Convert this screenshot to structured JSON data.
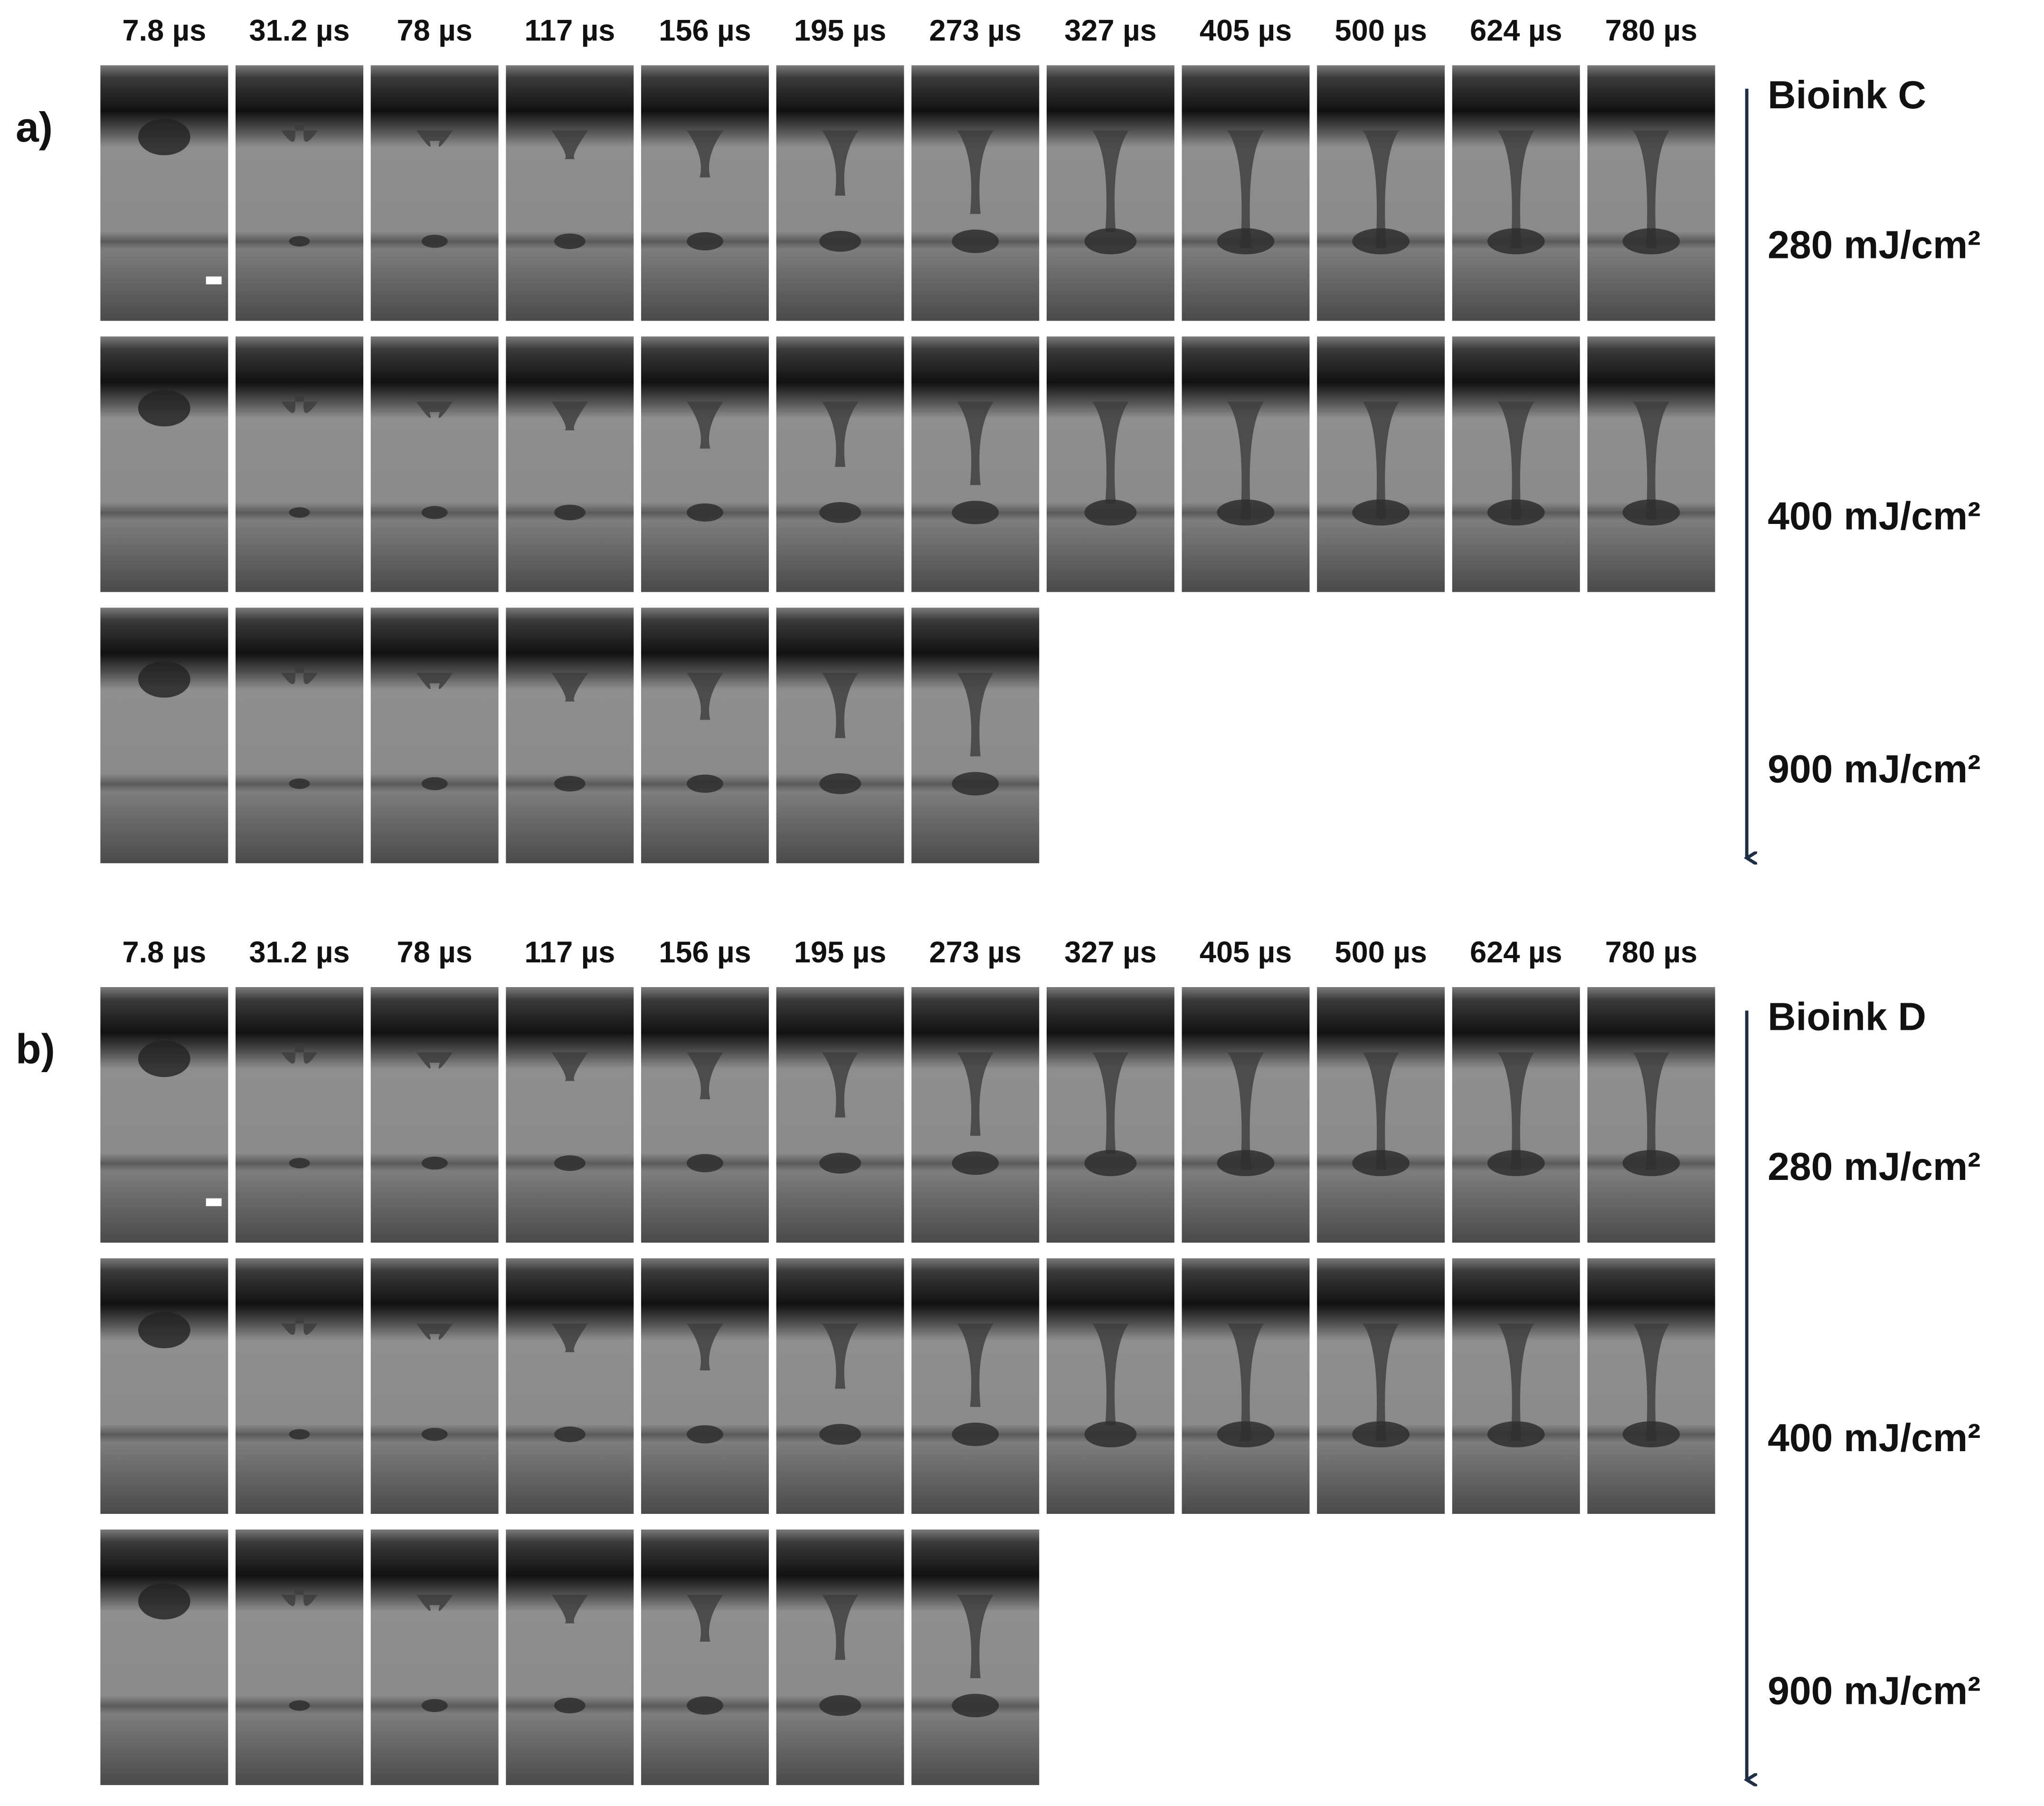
{
  "panels": [
    {
      "label": "a)",
      "bioink": "Bioink  C",
      "times": [
        "7.8 µs",
        "31.2 µs",
        "78 µs",
        "117 µs",
        "156 µs",
        "195 µs",
        "273 µs",
        "327 µs",
        "405 µs",
        "500 µs",
        "624 µs",
        "780 µs"
      ],
      "energies": [
        "280 mJ/cm²",
        "400 mJ/cm²",
        "900 mJ/cm²"
      ]
    },
    {
      "label": "b)",
      "bioink": "Bioink  D",
      "times": [
        "7.8 µs",
        "31.2 µs",
        "78 µs",
        "117 µs",
        "156 µs",
        "195 µs",
        "273 µs",
        "327 µs",
        "405 µs",
        "500 µs",
        "624 µs",
        "780 µs"
      ],
      "energies": [
        "280 mJ/cm²",
        "400 mJ/cm²",
        "900 mJ/cm²"
      ]
    }
  ]
}
